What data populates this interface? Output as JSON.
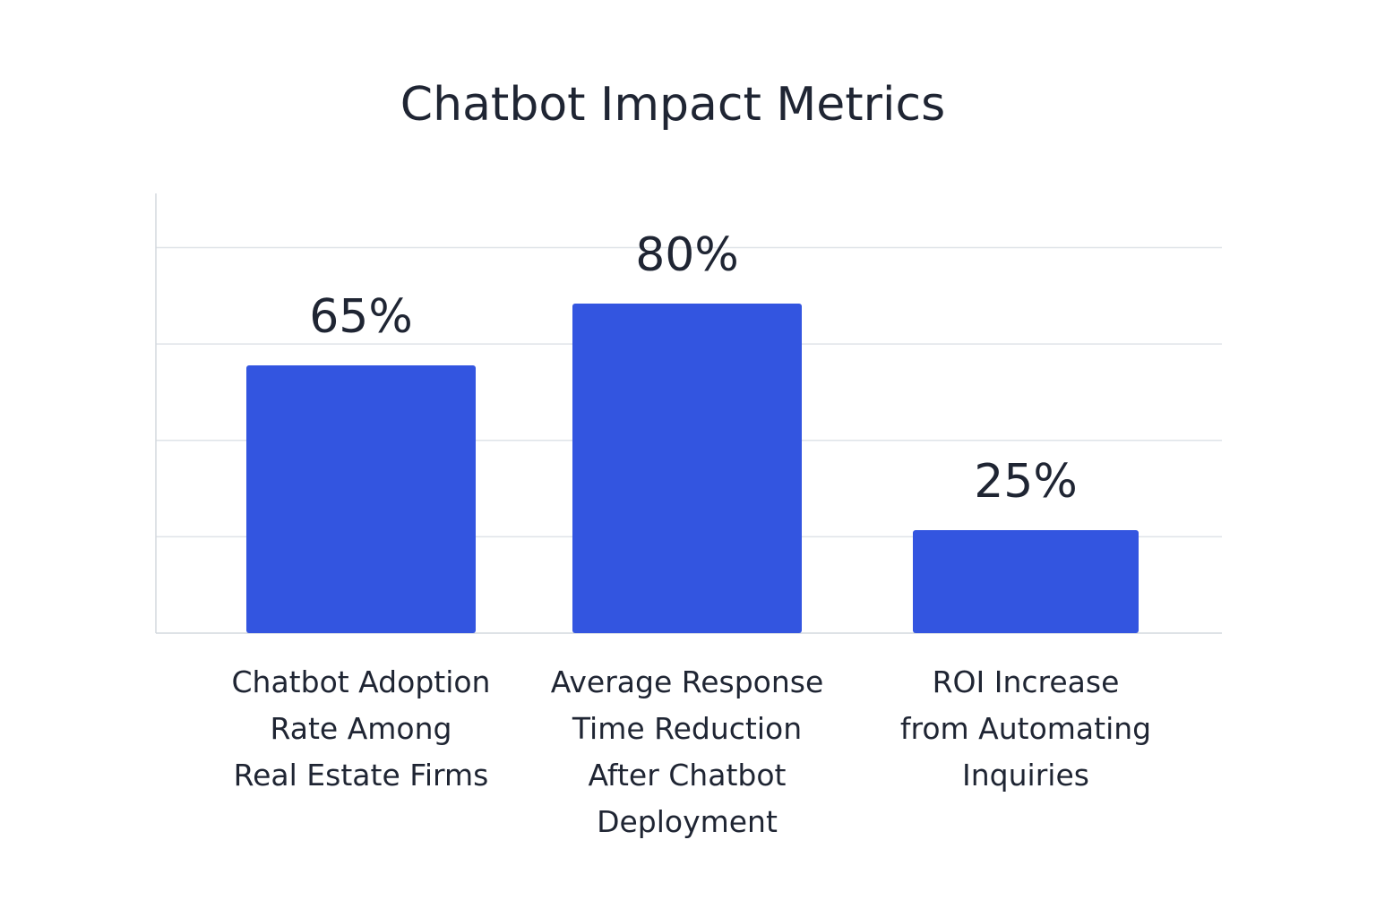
{
  "chart_data": {
    "type": "bar",
    "title": "Chatbot Impact Metrics",
    "xlabel": "",
    "ylabel": "",
    "ylim": [
      0,
      100
    ],
    "grid": true,
    "legend": "none",
    "categories": [
      "Chatbot Adoption Rate Among Real Estate Firms",
      "Average Response Time Reduction After Chatbot Deployment",
      "ROI Increase from Automating Inquiries"
    ],
    "category_lines": [
      [
        "Chatbot Adoption",
        "Rate Among",
        "Real Estate Firms"
      ],
      [
        "Average Response",
        "Time Reduction",
        "After Chatbot",
        "Deployment"
      ],
      [
        "ROI Increase",
        "from Automating",
        "Inquiries"
      ]
    ],
    "values": [
      65,
      80,
      25
    ],
    "value_labels": [
      "65%",
      "80%",
      "25%"
    ],
    "bar_color": "#3355e0"
  }
}
